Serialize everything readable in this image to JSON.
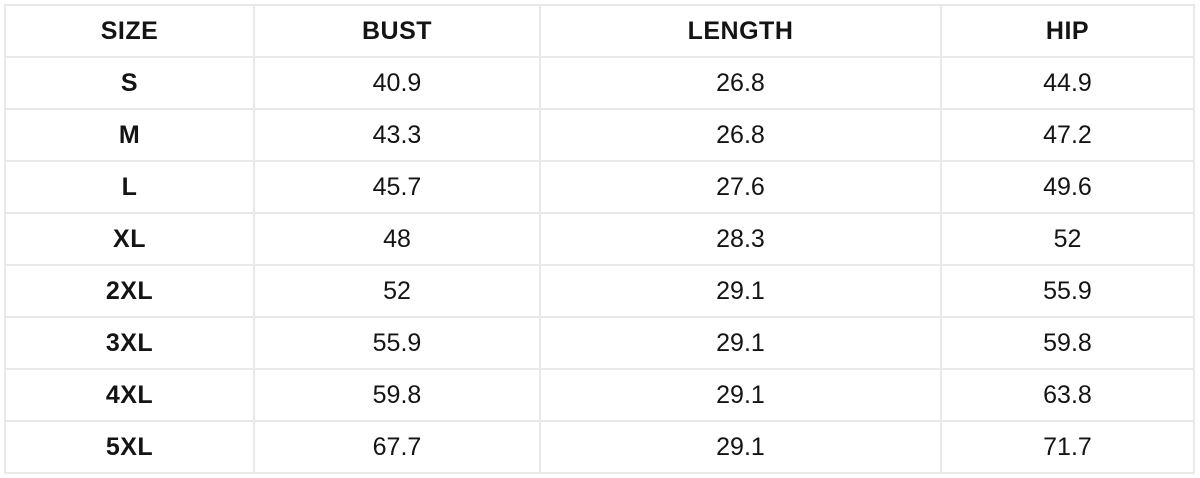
{
  "colors": {
    "background": "#ffffff",
    "grid_border": "#e9e9e9",
    "text": "#141414"
  },
  "chart_data": {
    "type": "table",
    "title": "",
    "columns": [
      "SIZE",
      "BUST",
      "LENGTH",
      "HIP"
    ],
    "rows": [
      [
        "S",
        "40.9",
        "26.8",
        "44.9"
      ],
      [
        "M",
        "43.3",
        "26.8",
        "47.2"
      ],
      [
        "L",
        "45.7",
        "27.6",
        "49.6"
      ],
      [
        "XL",
        "48",
        "28.3",
        "52"
      ],
      [
        "2XL",
        "52",
        "29.1",
        "55.9"
      ],
      [
        "3XL",
        "55.9",
        "29.1",
        "59.8"
      ],
      [
        "4XL",
        "59.8",
        "29.1",
        "63.8"
      ],
      [
        "5XL",
        "67.7",
        "29.1",
        "71.7"
      ]
    ]
  }
}
